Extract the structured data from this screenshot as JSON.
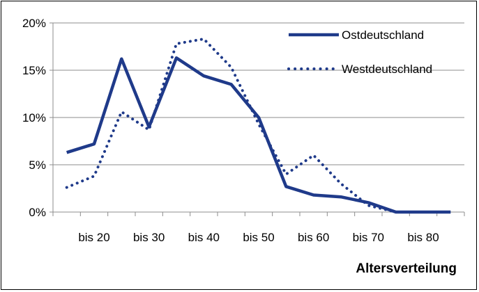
{
  "chart_data": {
    "type": "line",
    "x": [
      15,
      20,
      25,
      30,
      35,
      40,
      45,
      50,
      55,
      60,
      65,
      70,
      75,
      80,
      85
    ],
    "x_tick_labels": [
      {
        "x": 20,
        "label": "bis 20"
      },
      {
        "x": 30,
        "label": "bis 30"
      },
      {
        "x": 40,
        "label": "bis 40"
      },
      {
        "x": 50,
        "label": "bis 50"
      },
      {
        "x": 60,
        "label": "bis 60"
      },
      {
        "x": 70,
        "label": "bis 70"
      },
      {
        "x": 80,
        "label": "bis 80"
      }
    ],
    "y_ticks": [
      {
        "value": 0,
        "label": "0%"
      },
      {
        "value": 5,
        "label": "5%"
      },
      {
        "value": 10,
        "label": "10%"
      },
      {
        "value": 15,
        "label": "15%"
      },
      {
        "value": 20,
        "label": "20%"
      }
    ],
    "ylim": [
      0,
      20
    ],
    "xlim": [
      12.5,
      87.5
    ],
    "xlabel": "Altersverteilung",
    "ylabel": "",
    "title": "",
    "grid": "horizontal",
    "legend_position": "top-right",
    "series": [
      {
        "name": "Ostdeutschland",
        "style": "solid",
        "color": "#1f3a8a",
        "values": [
          6.3,
          7.2,
          16.2,
          9.0,
          16.3,
          14.4,
          13.5,
          10.0,
          2.7,
          1.8,
          1.6,
          1.0,
          0.0,
          0.0,
          0.0
        ]
      },
      {
        "name": "Westdeutschland",
        "style": "dotted",
        "color": "#1f3a8a",
        "values": [
          2.6,
          3.8,
          10.6,
          8.7,
          17.8,
          18.3,
          15.3,
          9.3,
          4.0,
          6.0,
          3.0,
          0.7,
          0.0,
          0.0,
          0.0
        ]
      }
    ]
  }
}
